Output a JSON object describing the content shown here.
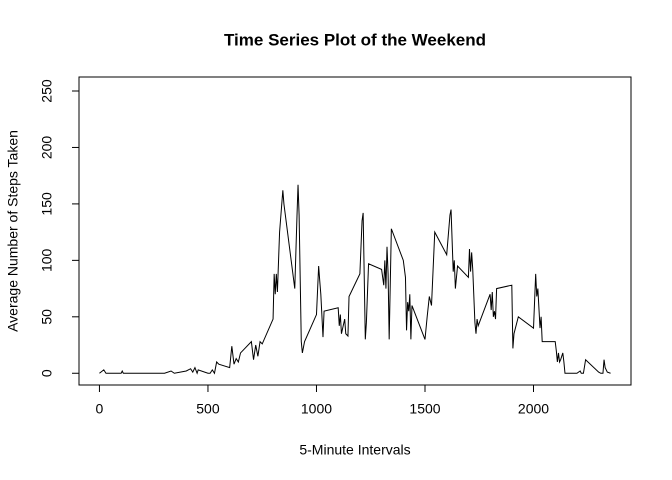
{
  "chart_data": {
    "type": "line",
    "title": "Time Series Plot of the Weekend",
    "x_label": "5-Minute Intervals",
    "y_label": "Average Number of Steps Taken",
    "color": "#000000",
    "xlim": [
      -94.2,
      2449.2
    ],
    "ylim": [
      -10.4,
      262.4
    ],
    "xticks": [
      0,
      500,
      1000,
      1500,
      2000
    ],
    "yticks": [
      0,
      50,
      100,
      150,
      200,
      250
    ],
    "x": [
      0,
      20,
      30,
      100,
      105,
      110,
      300,
      330,
      345,
      400,
      420,
      430,
      440,
      450,
      455,
      500,
      510,
      520,
      530,
      540,
      550,
      600,
      610,
      620,
      630,
      640,
      650,
      700,
      710,
      720,
      730,
      740,
      750,
      800,
      805,
      810,
      815,
      820,
      830,
      845,
      850,
      900,
      910,
      915,
      920,
      930,
      935,
      945,
      1000,
      1010,
      1015,
      1020,
      1030,
      1035,
      1100,
      1105,
      1110,
      1115,
      1130,
      1135,
      1145,
      1150,
      1200,
      1210,
      1215,
      1225,
      1230,
      1240,
      1300,
      1310,
      1315,
      1320,
      1325,
      1330,
      1335,
      1345,
      1400,
      1410,
      1415,
      1420,
      1425,
      1430,
      1435,
      1440,
      1500,
      1510,
      1520,
      1530,
      1545,
      1600,
      1615,
      1620,
      1630,
      1635,
      1640,
      1650,
      1700,
      1705,
      1710,
      1715,
      1720,
      1730,
      1735,
      1740,
      1745,
      1800,
      1805,
      1810,
      1815,
      1820,
      1825,
      1830,
      1900,
      1905,
      1910,
      1930,
      2000,
      2010,
      2015,
      2020,
      2030,
      2035,
      2040,
      2100,
      2105,
      2110,
      2115,
      2120,
      2125,
      2135,
      2140,
      2145,
      2200,
      2215,
      2220,
      2230,
      2240,
      2300,
      2310,
      2320,
      2325,
      2330,
      2340,
      2355
    ],
    "series": [
      {
        "values": [
          0,
          3,
          0,
          0,
          2,
          0,
          0,
          2,
          0,
          2,
          4,
          1,
          5,
          0,
          3,
          0,
          0,
          3,
          0,
          10,
          8,
          5,
          24,
          8,
          13,
          10,
          18,
          28,
          12,
          25,
          15,
          28,
          26,
          48,
          88,
          70,
          88,
          72,
          125,
          162,
          150,
          75,
          138,
          167,
          140,
          28,
          18,
          28,
          52,
          95,
          82,
          70,
          32,
          55,
          58,
          42,
          52,
          35,
          48,
          35,
          33,
          68,
          88,
          135,
          142,
          30,
          45,
          97,
          92,
          78,
          100,
          75,
          112,
          88,
          30,
          128,
          100,
          85,
          38,
          63,
          55,
          70,
          30,
          60,
          30,
          50,
          68,
          60,
          125,
          105,
          140,
          145,
          90,
          100,
          75,
          95,
          85,
          110,
          90,
          107,
          92,
          45,
          35,
          48,
          42,
          70,
          56,
          72,
          50,
          55,
          48,
          75,
          78,
          22,
          35,
          50,
          40,
          88,
          68,
          75,
          40,
          50,
          28,
          28,
          20,
          10,
          18,
          10,
          12,
          18,
          10,
          0,
          0,
          2,
          0,
          0,
          12,
          1,
          0,
          0,
          12,
          5,
          1,
          0
        ]
      }
    ]
  }
}
